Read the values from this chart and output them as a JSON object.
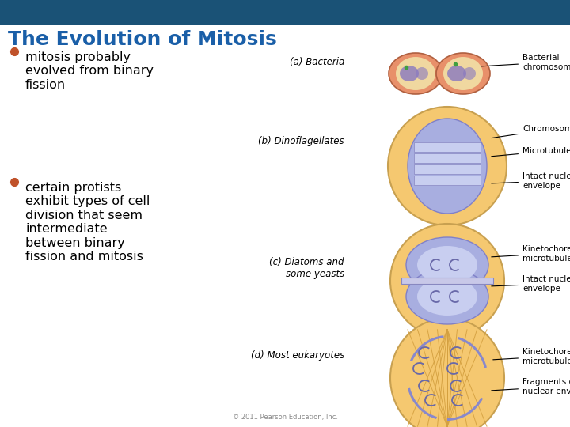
{
  "title": "The Evolution of Mitosis",
  "title_color": "#1a5fa8",
  "title_fontsize": 18,
  "header_bar_color": "#1a5276",
  "bg_color": "#ffffff",
  "bullet_color": "#c0522a",
  "bullet_text_color": "#000000",
  "bullet_fontsize": 11.5,
  "bullets": [
    "mitosis probably\nevolved from binary\nfission",
    "certain protists\nexhibit types of cell\ndivision that seem\nintermediate\nbetween binary\nfission and mitosis"
  ],
  "copyright": "© 2011 Pearson Education, Inc."
}
